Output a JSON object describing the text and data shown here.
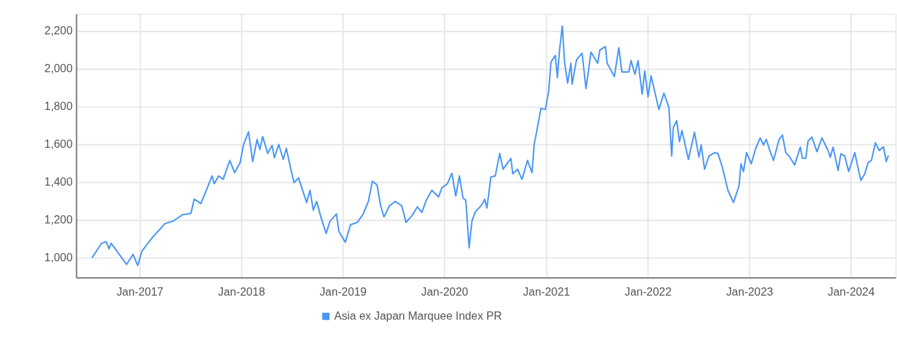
{
  "chart_data": {
    "type": "line",
    "x": [
      "2016-07-14",
      "2016-08-17",
      "2016-09-03",
      "2016-09-13",
      "2016-09-20",
      "2016-10-14",
      "2016-11-15",
      "2016-12-08",
      "2016-12-25",
      "2017-01-09",
      "2017-02-14",
      "2017-03-12",
      "2017-04-02",
      "2017-04-30",
      "2017-06-05",
      "2017-07-04",
      "2017-07-16",
      "2017-08-09",
      "2017-09-02",
      "2017-09-18",
      "2017-09-26",
      "2017-10-12",
      "2017-10-28",
      "2017-11-21",
      "2017-12-08",
      "2017-12-28",
      "2018-01-09",
      "2018-01-27",
      "2018-02-11",
      "2018-02-27",
      "2018-03-09",
      "2018-03-19",
      "2018-04-06",
      "2018-04-22",
      "2018-04-30",
      "2018-05-16",
      "2018-06-01",
      "2018-06-12",
      "2018-07-02",
      "2018-07-10",
      "2018-07-26",
      "2018-08-24",
      "2018-09-05",
      "2018-09-17",
      "2018-09-29",
      "2018-10-15",
      "2018-11-02",
      "2018-11-16",
      "2018-12-09",
      "2018-12-18",
      "2019-01-10",
      "2019-01-29",
      "2019-02-22",
      "2019-03-14",
      "2019-04-03",
      "2019-04-17",
      "2019-05-04",
      "2019-05-17",
      "2019-05-29",
      "2019-06-18",
      "2019-07-08",
      "2019-08-01",
      "2019-08-16",
      "2019-09-06",
      "2019-09-26",
      "2019-10-12",
      "2019-10-28",
      "2019-11-17",
      "2019-12-11",
      "2019-12-23",
      "2020-01-12",
      "2020-01-28",
      "2020-02-11",
      "2020-02-24",
      "2020-03-08",
      "2020-03-18",
      "2020-03-30",
      "2020-04-09",
      "2020-04-20",
      "2020-05-15",
      "2020-05-25",
      "2020-06-02",
      "2020-06-16",
      "2020-07-02",
      "2020-07-18",
      "2020-07-30",
      "2020-08-27",
      "2020-09-03",
      "2020-09-20",
      "2020-10-06",
      "2020-10-26",
      "2020-11-11",
      "2020-11-19",
      "2020-11-27",
      "2020-12-13",
      "2020-12-29",
      "2021-01-10",
      "2021-01-18",
      "2021-02-03",
      "2021-02-10",
      "2021-02-18",
      "2021-02-28",
      "2021-03-08",
      "2021-03-19",
      "2021-03-31",
      "2021-04-04",
      "2021-04-20",
      "2021-05-10",
      "2021-05-24",
      "2021-06-11",
      "2021-07-05",
      "2021-07-13",
      "2021-08-02",
      "2021-08-08",
      "2021-09-03",
      "2021-09-19",
      "2021-09-30",
      "2021-10-25",
      "2021-11-02",
      "2021-11-16",
      "2021-11-27",
      "2021-12-12",
      "2021-12-21",
      "2022-01-02",
      "2022-01-13",
      "2022-02-10",
      "2022-02-28",
      "2022-03-18",
      "2022-03-28",
      "2022-04-03",
      "2022-04-15",
      "2022-04-25",
      "2022-05-04",
      "2022-05-27",
      "2022-06-06",
      "2022-06-18",
      "2022-07-04",
      "2022-07-12",
      "2022-07-24",
      "2022-08-09",
      "2022-08-29",
      "2022-09-10",
      "2022-09-26",
      "2022-10-16",
      "2022-11-05",
      "2022-11-25",
      "2022-12-02",
      "2022-12-11",
      "2022-12-22",
      "2023-01-08",
      "2023-01-24",
      "2023-02-09",
      "2023-02-21",
      "2023-03-03",
      "2023-03-17",
      "2023-03-29",
      "2023-04-18",
      "2023-04-30",
      "2023-05-12",
      "2023-05-24",
      "2023-06-13",
      "2023-07-03",
      "2023-07-11",
      "2023-07-23",
      "2023-07-31",
      "2023-08-14",
      "2023-09-01",
      "2023-09-19",
      "2023-10-11",
      "2023-10-19",
      "2023-10-29",
      "2023-11-16",
      "2023-11-26",
      "2023-12-10",
      "2023-12-24",
      "2024-01-03",
      "2024-01-15",
      "2024-01-26",
      "2024-02-06",
      "2024-02-20",
      "2024-03-03",
      "2024-03-15",
      "2024-03-29",
      "2024-04-12",
      "2024-04-27",
      "2024-05-07",
      "2024-05-15"
    ],
    "series": [
      {
        "name": "Asia ex Japan Marquee Index PR",
        "color": "#4a97f5",
        "values": [
          1000,
          1077,
          1084,
          1047,
          1077,
          1029,
          965,
          1018,
          959,
          1035,
          1105,
          1146,
          1181,
          1193,
          1228,
          1234,
          1310,
          1287,
          1374,
          1433,
          1392,
          1433,
          1415,
          1515,
          1450,
          1503,
          1597,
          1667,
          1509,
          1626,
          1573,
          1641,
          1552,
          1594,
          1529,
          1599,
          1520,
          1579,
          1444,
          1397,
          1423,
          1292,
          1357,
          1252,
          1298,
          1211,
          1129,
          1193,
          1232,
          1140,
          1082,
          1175,
          1187,
          1228,
          1298,
          1404,
          1386,
          1275,
          1216,
          1275,
          1298,
          1275,
          1187,
          1222,
          1269,
          1240,
          1304,
          1357,
          1322,
          1369,
          1392,
          1447,
          1327,
          1433,
          1316,
          1304,
          1053,
          1193,
          1240,
          1281,
          1310,
          1263,
          1427,
          1433,
          1552,
          1468,
          1526,
          1444,
          1468,
          1415,
          1515,
          1450,
          1602,
          1661,
          1790,
          1784,
          1883,
          2035,
          2070,
          1953,
          2099,
          2226,
          2035,
          1924,
          2029,
          1918,
          2047,
          2082,
          1895,
          2088,
          2029,
          2099,
          2117,
          2029,
          1959,
          2111,
          1983,
          1983,
          2043,
          1971,
          2043,
          1866,
          1988,
          1851,
          1962,
          1784,
          1871,
          1795,
          1538,
          1690,
          1725,
          1614,
          1673,
          1520,
          1585,
          1664,
          1532,
          1597,
          1468,
          1538,
          1556,
          1552,
          1480,
          1357,
          1292,
          1380,
          1497,
          1456,
          1556,
          1497,
          1579,
          1634,
          1597,
          1626,
          1561,
          1515,
          1626,
          1649,
          1556,
          1538,
          1491,
          1585,
          1526,
          1526,
          1617,
          1638,
          1561,
          1634,
          1567,
          1532,
          1585,
          1462,
          1550,
          1538,
          1456,
          1503,
          1556,
          1480,
          1409,
          1444,
          1503,
          1515,
          1608,
          1567,
          1587,
          1509,
          1541
        ]
      }
    ],
    "xlim": [
      "2016-05-18",
      "2024-06-10"
    ],
    "xticks": [
      {
        "value": "2017-01-01",
        "label": "Jan-2017"
      },
      {
        "value": "2018-01-01",
        "label": "Jan-2018"
      },
      {
        "value": "2019-01-01",
        "label": "Jan-2019"
      },
      {
        "value": "2020-01-01",
        "label": "Jan-2020"
      },
      {
        "value": "2021-01-01",
        "label": "Jan-2021"
      },
      {
        "value": "2022-01-01",
        "label": "Jan-2022"
      },
      {
        "value": "2023-01-01",
        "label": "Jan-2023"
      },
      {
        "value": "2024-01-01",
        "label": "Jan-2024"
      }
    ],
    "ylim": [
      895,
      2290
    ],
    "yticks": [
      {
        "value": 1000,
        "label": "1,000"
      },
      {
        "value": 1200,
        "label": "1,200"
      },
      {
        "value": 1400,
        "label": "1,400"
      },
      {
        "value": 1600,
        "label": "1,600"
      },
      {
        "value": 1800,
        "label": "1,800"
      },
      {
        "value": 2000,
        "label": "2,000"
      },
      {
        "value": 2200,
        "label": "2,200"
      }
    ],
    "grid": true,
    "legend": "bottom",
    "line_style": "solid",
    "marker": "none"
  }
}
